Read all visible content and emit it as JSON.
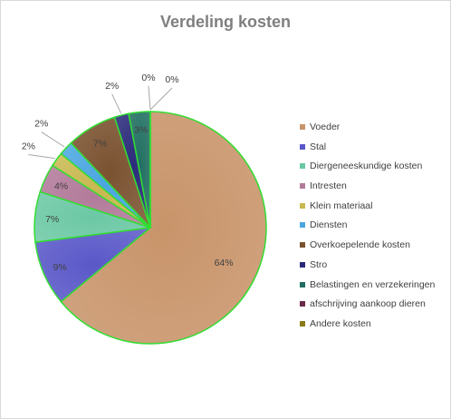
{
  "chart_data": {
    "type": "pie",
    "title": "Verdeling kosten",
    "slices": [
      {
        "name": "Voeder",
        "value": 64,
        "label": "64%",
        "color": "#c8946a"
      },
      {
        "name": "Stal",
        "value": 9,
        "label": "9%",
        "color": "#5a58c8"
      },
      {
        "name": "Diergeneeskundige kosten",
        "value": 7,
        "label": "7%",
        "color": "#6bc8a4"
      },
      {
        "name": "Intresten",
        "value": 4,
        "label": "4%",
        "color": "#b27a9a"
      },
      {
        "name": "Klein materiaal",
        "value": 2,
        "label": "2%",
        "color": "#c8b850"
      },
      {
        "name": "Diensten",
        "value": 2,
        "label": "2%",
        "color": "#4aa6e0"
      },
      {
        "name": "Overkoepelende kosten",
        "value": 7,
        "label": "7%",
        "color": "#7a5230"
      },
      {
        "name": "Stro",
        "value": 2,
        "label": "2%",
        "color": "#2a2a7a"
      },
      {
        "name": "Belastingen en verzekeringen",
        "value": 3,
        "label": "3%",
        "color": "#1f6e60"
      },
      {
        "name": "afschrijving aankoop dieren",
        "value": 0,
        "label": "0%",
        "color": "#6a2a4a"
      },
      {
        "name": "Andere kosten",
        "value": 0,
        "label": "0%",
        "color": "#8a7a1a"
      }
    ],
    "start_angle_deg": 0,
    "direction": "clockwise",
    "slice_border_color": "#33dd33",
    "legend_position": "right"
  }
}
